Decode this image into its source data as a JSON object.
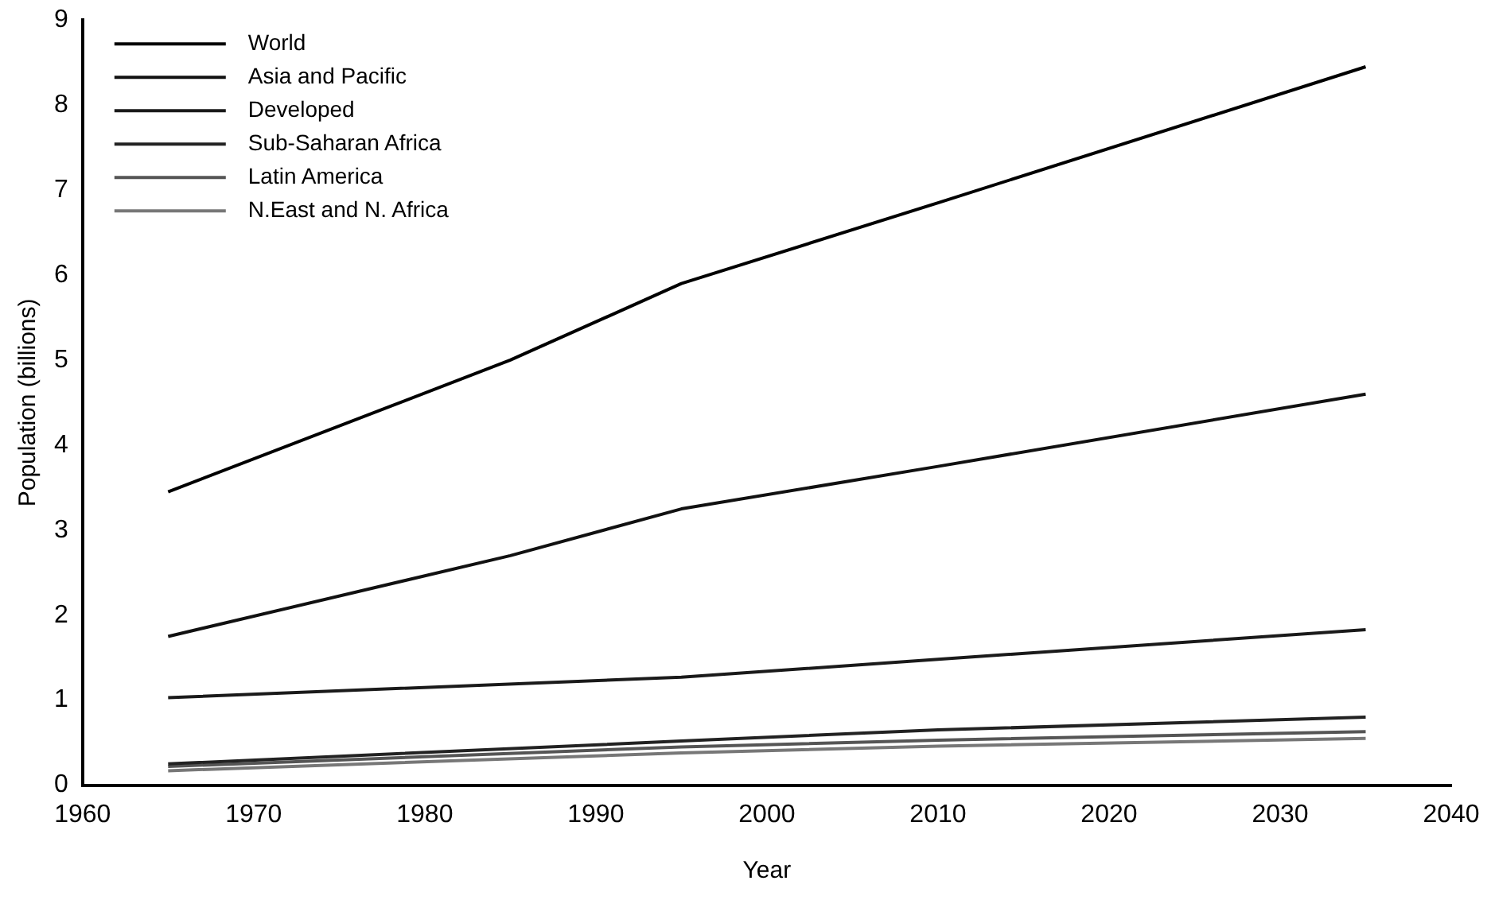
{
  "chart_data": {
    "type": "line",
    "xlabel": "Year",
    "ylabel": "Population (billions)",
    "xlim": [
      1960,
      2040
    ],
    "xticks": [
      1960,
      1970,
      1980,
      1990,
      2000,
      2010,
      2020,
      2030,
      2040
    ],
    "ylim": [
      0,
      9
    ],
    "yticks": [
      0,
      1,
      2,
      3,
      4,
      5,
      6,
      7,
      8,
      9
    ],
    "grid": false,
    "legend": "top left",
    "marker": "none",
    "line_style": "solid",
    "series": [
      {
        "name": "World",
        "color": "#000000",
        "x": [
          1965,
          1985,
          1995,
          2010,
          2035
        ],
        "values": [
          3.45,
          5.0,
          5.9,
          6.85,
          8.45
        ]
      },
      {
        "name": "Asia and Pacific",
        "color": "#111111",
        "x": [
          1965,
          1985,
          1995,
          2010,
          2035
        ],
        "values": [
          1.75,
          2.7,
          3.25,
          3.75,
          4.6
        ]
      },
      {
        "name": "Developed",
        "color": "#1a1a1a",
        "x": [
          1965,
          1995,
          2010,
          2035
        ],
        "values": [
          1.03,
          1.27,
          1.48,
          1.83
        ]
      },
      {
        "name": "Sub-Saharan Africa",
        "color": "#222222",
        "x": [
          1965,
          1995,
          2010,
          2035
        ],
        "values": [
          0.25,
          0.52,
          0.65,
          0.8
        ]
      },
      {
        "name": "Latin America",
        "color": "#555555",
        "x": [
          1965,
          1995,
          2010,
          2035
        ],
        "values": [
          0.22,
          0.45,
          0.53,
          0.63
        ]
      },
      {
        "name": "N.East and N. Africa",
        "color": "#777777",
        "x": [
          1965,
          1995,
          2010,
          2035
        ],
        "values": [
          0.17,
          0.38,
          0.46,
          0.55
        ]
      }
    ]
  }
}
